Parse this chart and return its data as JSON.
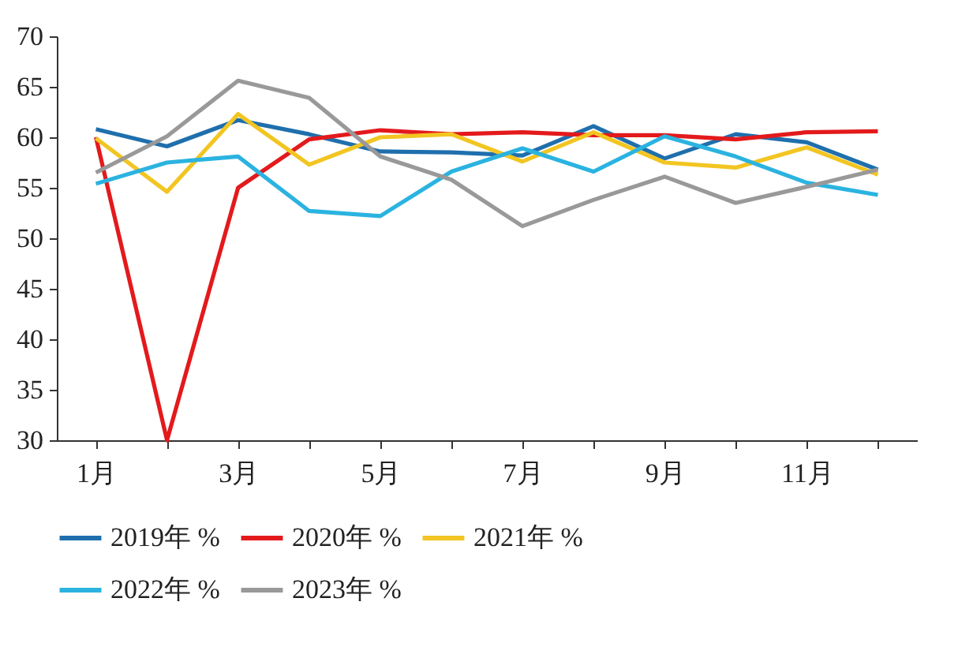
{
  "chart_data": {
    "type": "line",
    "categories": [
      "1月",
      null,
      "3月",
      null,
      "5月",
      null,
      "7月",
      null,
      "9月",
      null,
      "11月",
      null
    ],
    "series": [
      {
        "name": "2019年 %",
        "color": "#1f6fad",
        "values": [
          60.8,
          59.1,
          61.7,
          60.3,
          58.6,
          58.5,
          58.2,
          61.1,
          57.9,
          60.3,
          59.5,
          56.8
        ]
      },
      {
        "name": "2020年 %",
        "color": "#e31a1c",
        "values": [
          60.0,
          30.0,
          55.0,
          59.8,
          60.7,
          60.3,
          60.5,
          60.2,
          60.2,
          59.8,
          60.5,
          60.6
        ]
      },
      {
        "name": "2021年 %",
        "color": "#f2c521",
        "values": [
          59.9,
          54.6,
          62.3,
          57.3,
          60.0,
          60.3,
          57.6,
          60.5,
          57.5,
          57.0,
          59.0,
          56.3
        ]
      },
      {
        "name": "2022年 %",
        "color": "#2bb3e0",
        "values": [
          55.4,
          57.5,
          58.1,
          52.7,
          52.2,
          56.6,
          58.9,
          56.6,
          60.1,
          58.1,
          55.5,
          54.3
        ]
      },
      {
        "name": "2023年 %",
        "color": "#999999",
        "values": [
          56.5,
          60.1,
          65.6,
          63.9,
          58.1,
          55.8,
          51.2,
          53.8,
          56.1,
          53.5,
          55.1,
          56.8
        ]
      }
    ],
    "ylim": [
      30,
      70
    ],
    "yticks": [
      30,
      35,
      40,
      45,
      50,
      55,
      60,
      65,
      70
    ],
    "grid": false,
    "legend": "bottom",
    "marker": "none",
    "line_style": "solid"
  }
}
